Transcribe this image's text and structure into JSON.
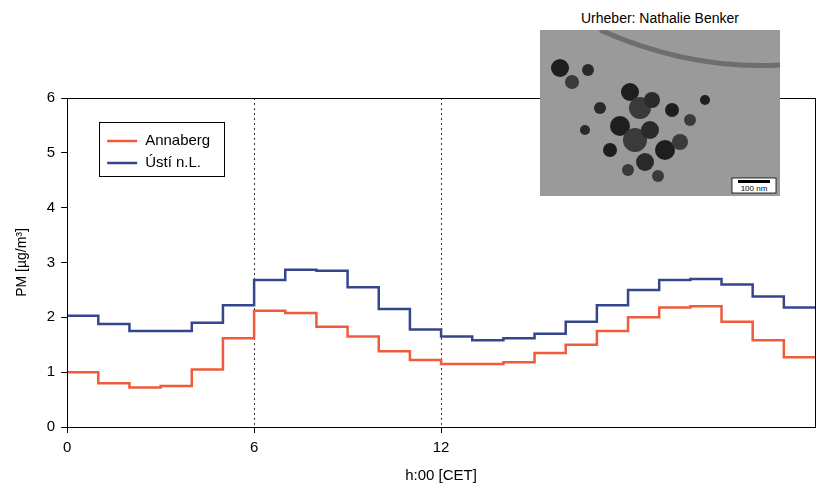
{
  "chart_data": {
    "type": "line",
    "xlabel": "h:00 [CET]",
    "ylabel": "PM [µg/m³]",
    "x": [
      0,
      1,
      2,
      3,
      4,
      5,
      6,
      7,
      8,
      9,
      10,
      11,
      12,
      13,
      14,
      15,
      16,
      17,
      18,
      19,
      20,
      21,
      22,
      23
    ],
    "series": [
      {
        "name": "Annaberg",
        "color": "#ef5b3b",
        "values": [
          1.0,
          0.8,
          0.72,
          0.75,
          1.05,
          1.62,
          2.12,
          2.08,
          1.83,
          1.65,
          1.38,
          1.22,
          1.15,
          1.15,
          1.18,
          1.35,
          1.5,
          1.75,
          2.0,
          2.18,
          2.2,
          1.92,
          1.58,
          1.27
        ]
      },
      {
        "name": "Ústí n.L.",
        "color": "#34468c",
        "values": [
          2.03,
          1.88,
          1.75,
          1.75,
          1.9,
          2.22,
          2.68,
          2.87,
          2.85,
          2.55,
          2.15,
          1.78,
          1.65,
          1.58,
          1.62,
          1.7,
          1.92,
          2.22,
          2.5,
          2.68,
          2.7,
          2.6,
          2.38,
          2.18
        ]
      }
    ],
    "xlim": [
      0,
      24
    ],
    "xticks": [
      0,
      6,
      12
    ],
    "ylim": [
      0,
      6
    ],
    "yticks": [
      0,
      1,
      2,
      3,
      4,
      5,
      6
    ],
    "grid": "x",
    "legend": "upper left",
    "line_style": "steps",
    "annotations": [
      "Urheber: Nathalie Benker",
      "100 nm"
    ]
  }
}
